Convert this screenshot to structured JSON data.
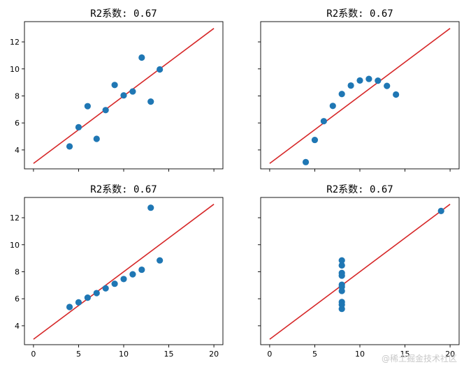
{
  "figure": {
    "watermark": "@稀土掘金技术社区"
  },
  "chart_data": [
    {
      "type": "scatter",
      "title": "R2系数: 0.67",
      "xlabel": "",
      "ylabel": "",
      "xlim": [
        -1,
        21
      ],
      "ylim": [
        2.6,
        13.5
      ],
      "xticks": [
        0,
        5,
        10,
        15,
        20
      ],
      "yticks": [
        4,
        6,
        8,
        10,
        12
      ],
      "show_xtick_labels": false,
      "show_ytick_labels": true,
      "grid": false,
      "points": {
        "color": "#1f77b4",
        "x": [
          10,
          8,
          13,
          9,
          11,
          14,
          6,
          4,
          12,
          7,
          5
        ],
        "y": [
          8.04,
          6.95,
          7.58,
          8.81,
          8.33,
          9.96,
          7.24,
          4.26,
          10.84,
          4.82,
          5.68
        ]
      },
      "fit_line": {
        "color": "#d62728",
        "x": [
          0,
          20
        ],
        "y": [
          3.0,
          13.0
        ]
      }
    },
    {
      "type": "scatter",
      "title": "R2系数: 0.67",
      "xlabel": "",
      "ylabel": "",
      "xlim": [
        -1,
        21
      ],
      "ylim": [
        2.6,
        13.5
      ],
      "xticks": [
        0,
        5,
        10,
        15,
        20
      ],
      "yticks": [
        4,
        6,
        8,
        10,
        12
      ],
      "show_xtick_labels": false,
      "show_ytick_labels": false,
      "grid": false,
      "points": {
        "color": "#1f77b4",
        "x": [
          10,
          8,
          13,
          9,
          11,
          14,
          6,
          4,
          12,
          7,
          5
        ],
        "y": [
          9.14,
          8.14,
          8.74,
          8.77,
          9.26,
          8.1,
          6.13,
          3.1,
          9.13,
          7.26,
          4.74
        ]
      },
      "fit_line": {
        "color": "#d62728",
        "x": [
          0,
          20
        ],
        "y": [
          3.0,
          13.0
        ]
      }
    },
    {
      "type": "scatter",
      "title": "R2系数: 0.67",
      "xlabel": "",
      "ylabel": "",
      "xlim": [
        -1,
        21
      ],
      "ylim": [
        2.6,
        13.5
      ],
      "xticks": [
        0,
        5,
        10,
        15,
        20
      ],
      "yticks": [
        4,
        6,
        8,
        10,
        12
      ],
      "show_xtick_labels": true,
      "show_ytick_labels": true,
      "grid": false,
      "points": {
        "color": "#1f77b4",
        "x": [
          10,
          8,
          13,
          9,
          11,
          14,
          6,
          4,
          12,
          7,
          5
        ],
        "y": [
          7.46,
          6.77,
          12.74,
          7.11,
          7.81,
          8.84,
          6.08,
          5.39,
          8.15,
          6.42,
          5.73
        ]
      },
      "fit_line": {
        "color": "#d62728",
        "x": [
          0,
          20
        ],
        "y": [
          3.0,
          13.0
        ]
      }
    },
    {
      "type": "scatter",
      "title": "R2系数: 0.67",
      "xlabel": "",
      "ylabel": "",
      "xlim": [
        -1,
        21
      ],
      "ylim": [
        2.6,
        13.5
      ],
      "xticks": [
        0,
        5,
        10,
        15,
        20
      ],
      "yticks": [
        4,
        6,
        8,
        10,
        12
      ],
      "show_xtick_labels": true,
      "show_ytick_labels": false,
      "grid": false,
      "points": {
        "color": "#1f77b4",
        "x": [
          8,
          8,
          8,
          8,
          8,
          8,
          8,
          19,
          8,
          8,
          8
        ],
        "y": [
          6.58,
          5.76,
          7.71,
          8.84,
          8.47,
          7.04,
          5.25,
          12.5,
          5.56,
          7.91,
          6.89
        ]
      },
      "fit_line": {
        "color": "#d62728",
        "x": [
          0,
          20
        ],
        "y": [
          3.0,
          13.0
        ]
      }
    }
  ]
}
